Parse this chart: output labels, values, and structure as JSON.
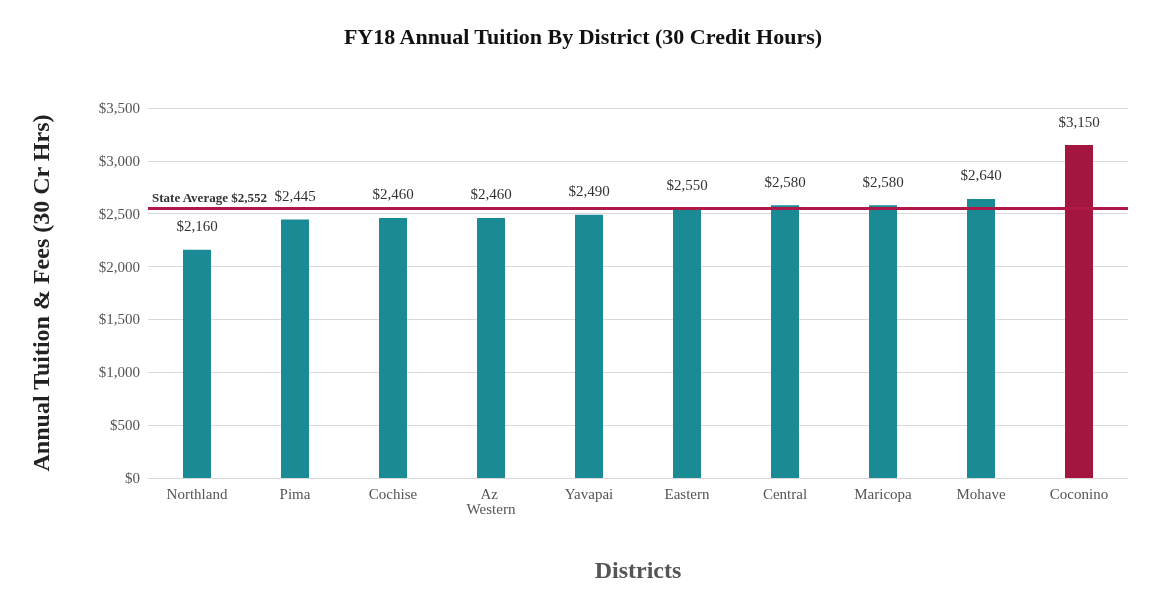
{
  "chart_data": {
    "type": "bar",
    "title": "FY18 Annual Tuition By District (30 Credit Hours)",
    "xlabel": "Districts",
    "ylabel": "Annual Tuition & Fees (30 Cr Hrs)",
    "categories": [
      "Northland",
      "Pima",
      "Cochise",
      "Az Western",
      "Yavapai",
      "Eastern",
      "Central",
      "Maricopa",
      "Mohave",
      "Coconino"
    ],
    "values": [
      2160,
      2445,
      2460,
      2460,
      2490,
      2550,
      2580,
      2580,
      2640,
      3150
    ],
    "value_labels": [
      "$2,160",
      "$2,445",
      "$2,460",
      "$2,460",
      "$2,490",
      "$2,550",
      "$2,580",
      "$2,580",
      "$2,640",
      "$3,150"
    ],
    "colors": [
      "#1a8a94",
      "#1a8a94",
      "#1a8a94",
      "#1a8a94",
      "#1a8a94",
      "#1a8a94",
      "#1a8a94",
      "#1a8a94",
      "#1a8a94",
      "#a3163f"
    ],
    "ylim": [
      0,
      3500
    ],
    "yticks": [
      {
        "value": 0,
        "label": "$0"
      },
      {
        "value": 500,
        "label": "$500"
      },
      {
        "value": 1000,
        "label": "$1,000"
      },
      {
        "value": 1500,
        "label": "$1,500"
      },
      {
        "value": 2000,
        "label": "$2,000"
      },
      {
        "value": 2500,
        "label": "$2,500"
      },
      {
        "value": 3000,
        "label": "$3,000"
      },
      {
        "value": 3500,
        "label": "$3,500"
      }
    ],
    "ref_lines": [
      {
        "axis": "y",
        "value": 2552,
        "label": "State Average $2,552",
        "color": "#b0184a"
      }
    ],
    "grid": "y"
  }
}
